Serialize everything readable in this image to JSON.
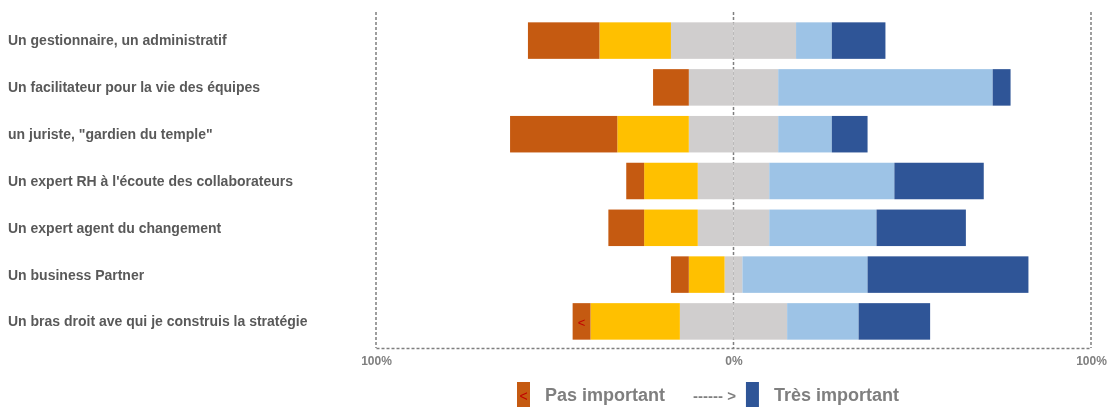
{
  "chart_data": {
    "type": "bar",
    "orientation": "horizontal",
    "stacked": true,
    "categories": [
      "Un gestionnaire, un administratif",
      "Un facilitateur pour la vie des équipes",
      "un juriste, \"gardien du temple\"",
      "Un expert RH à l'écoute des collaborateurs",
      "Un expert agent du changement",
      "Un business Partner",
      "Un bras droit ave qui je construis la stratégie"
    ],
    "series": [
      {
        "color": "#d0cece",
        "values": [
          -17.5,
          -12.5,
          -12.5,
          -10,
          -10,
          -2.5,
          -15
        ]
      },
      {
        "color": "#ffc000",
        "values": [
          -20,
          0,
          -20,
          -15,
          -15,
          -10,
          -25
        ]
      },
      {
        "name": "Pas important",
        "color": "#c55a11",
        "values": [
          -20,
          -10,
          -30,
          -5,
          -10,
          -5,
          -5
        ]
      },
      {
        "color": "#d0cece",
        "values": [
          17.5,
          12.5,
          12.5,
          10,
          10,
          2.5,
          15
        ]
      },
      {
        "color": "#9dc3e6",
        "values": [
          10,
          60,
          15,
          35,
          30,
          35,
          20
        ]
      },
      {
        "name": "Très important",
        "color": "#2f5597",
        "values": [
          15,
          5,
          10,
          25,
          25,
          45,
          20
        ]
      }
    ],
    "xlim": [
      -100,
      100
    ],
    "xticks": [
      {
        "value": -100,
        "label": "100%"
      },
      {
        "value": 0,
        "label": "0%"
      },
      {
        "value": 100,
        "label": "100%"
      }
    ],
    "grid": "x",
    "legend": "bottom",
    "annotations": [
      "<",
      "------ >",
      "<"
    ]
  }
}
